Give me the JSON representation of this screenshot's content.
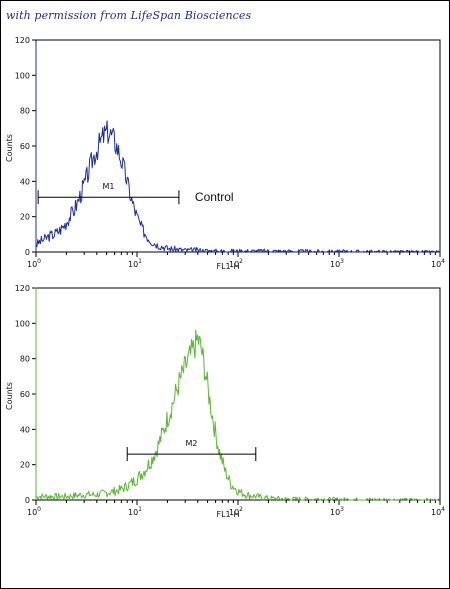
{
  "watermark": "with permission from LifeSpan Biosciences",
  "chart_data": [
    {
      "type": "line",
      "title": "",
      "xlabel": "FL1-H",
      "ylabel": "Counts",
      "x_scale": "log",
      "xlim": [
        1,
        10000
      ],
      "ylim": [
        0,
        120
      ],
      "x_ticks": [
        {
          "base": "10",
          "exp": "0"
        },
        {
          "base": "10",
          "exp": "1"
        },
        {
          "base": "10",
          "exp": "2"
        },
        {
          "base": "10",
          "exp": "3"
        },
        {
          "base": "10",
          "exp": "4"
        }
      ],
      "y_ticks": [
        "0",
        "20",
        "40",
        "60",
        "80",
        "100",
        "120"
      ],
      "color": "#1c2f9e",
      "series": [
        {
          "x": [
            1.0,
            1.1,
            1.2,
            1.35,
            1.5,
            1.7,
            1.9,
            2.1,
            2.4,
            2.7,
            3.0,
            3.3,
            3.6,
            4.0,
            4.4,
            4.8,
            5.2,
            5.6,
            6.0,
            6.5,
            7.0,
            7.6,
            8.2,
            9.0,
            10.0,
            11.0,
            12.5,
            14.0,
            16.0,
            18.0,
            20.0,
            25.0,
            30.0,
            40.0,
            60.0,
            100.0,
            200.0,
            400.0,
            1000.0,
            10000.0
          ],
          "y": [
            4,
            6,
            7,
            9,
            10,
            12,
            15,
            19,
            24,
            31,
            38,
            45,
            52,
            58,
            63,
            67,
            68,
            66,
            63,
            58,
            52,
            45,
            37,
            28,
            20,
            14,
            9,
            6,
            4,
            3,
            2,
            1.5,
            1,
            1,
            0.5,
            0.5,
            0.5,
            0.3,
            0.2,
            0
          ]
        }
      ],
      "annotation": {
        "label": "M1",
        "x_range": [
          1.05,
          26
        ],
        "y": 31
      },
      "side_label": "Control"
    },
    {
      "type": "line",
      "title": "",
      "xlabel": "FL1-H",
      "ylabel": "Counts",
      "x_scale": "log",
      "xlim": [
        1,
        10000
      ],
      "ylim": [
        0,
        120
      ],
      "x_ticks": [
        {
          "base": "10",
          "exp": "0"
        },
        {
          "base": "10",
          "exp": "1"
        },
        {
          "base": "10",
          "exp": "2"
        },
        {
          "base": "10",
          "exp": "3"
        },
        {
          "base": "10",
          "exp": "4"
        }
      ],
      "y_ticks": [
        "0",
        "20",
        "40",
        "60",
        "80",
        "100",
        "120"
      ],
      "color": "#58b832",
      "series": [
        {
          "x": [
            1.0,
            1.5,
            2.0,
            3.0,
            4.0,
            5.0,
            6.0,
            7.0,
            8.0,
            9.0,
            10.0,
            12.0,
            14.0,
            16.0,
            18.0,
            20.0,
            23.0,
            26.0,
            30.0,
            34.0,
            38.0,
            40.0,
            43.0,
            47.0,
            52.0,
            58.0,
            65.0,
            75.0,
            85.0,
            100.0,
            120.0,
            150.0,
            200.0,
            300.0,
            500.0,
            1000.0,
            2000.0,
            10000.0
          ],
          "y": [
            2,
            2,
            2,
            3,
            3,
            4,
            5,
            6,
            8,
            10,
            12,
            17,
            23,
            30,
            38,
            46,
            56,
            66,
            75,
            82,
            88,
            91,
            86,
            74,
            58,
            42,
            28,
            16,
            9,
            5,
            3,
            2,
            1,
            0.5,
            0.5,
            0.3,
            0.2,
            0
          ]
        }
      ],
      "annotation": {
        "label": "M2",
        "x_range": [
          8,
          150
        ],
        "y": 26
      }
    }
  ]
}
